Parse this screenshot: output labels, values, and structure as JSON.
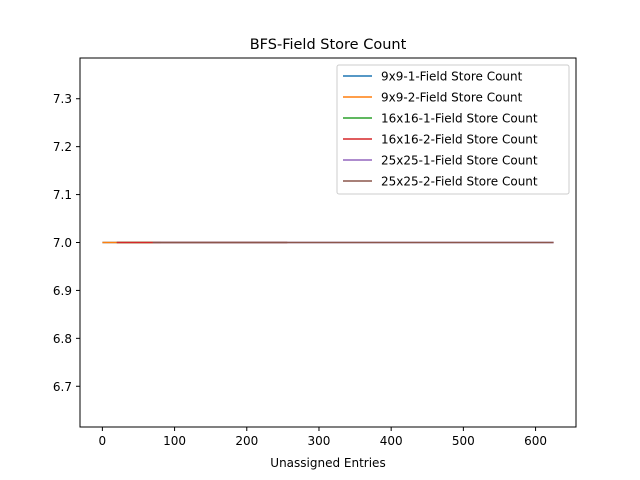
{
  "chart_data": {
    "type": "line",
    "title": "BFS-Field Store Count",
    "xlabel": "Unassigned Entries",
    "ylabel": "",
    "xlim": [
      -31,
      656
    ],
    "ylim": [
      6.615,
      7.385
    ],
    "xticks": [
      0,
      100,
      200,
      300,
      400,
      500,
      600
    ],
    "xtick_labels": [
      "0",
      "100",
      "200",
      "300",
      "400",
      "500",
      "600"
    ],
    "yticks": [
      6.7,
      6.8,
      6.9,
      7.0,
      7.1,
      7.2,
      7.3
    ],
    "ytick_labels": [
      "6.7",
      "6.8",
      "6.9",
      "7.0",
      "7.1",
      "7.2",
      "7.3"
    ],
    "grid": false,
    "legend_position": "top-right",
    "series": [
      {
        "name": "9x9-1-Field Store Count",
        "color": "#1f77b4",
        "x": [
          0,
          81
        ],
        "y": [
          7.0,
          7.0
        ]
      },
      {
        "name": "9x9-2-Field Store Count",
        "color": "#ff7f0e",
        "x": [
          0,
          81
        ],
        "y": [
          7.0,
          7.0
        ]
      },
      {
        "name": "16x16-1-Field Store Count",
        "color": "#2ca02c",
        "x": [
          20,
          256
        ],
        "y": [
          7.0,
          7.0
        ]
      },
      {
        "name": "16x16-2-Field Store Count",
        "color": "#d62728",
        "x": [
          20,
          256
        ],
        "y": [
          7.0,
          7.0
        ]
      },
      {
        "name": "25x25-1-Field Store Count",
        "color": "#9467bd",
        "x": [
          70,
          625
        ],
        "y": [
          7.0,
          7.0
        ]
      },
      {
        "name": "25x25-2-Field Store Count",
        "color": "#8c564b",
        "x": [
          70,
          625
        ],
        "y": [
          7.0,
          7.0
        ]
      }
    ]
  }
}
